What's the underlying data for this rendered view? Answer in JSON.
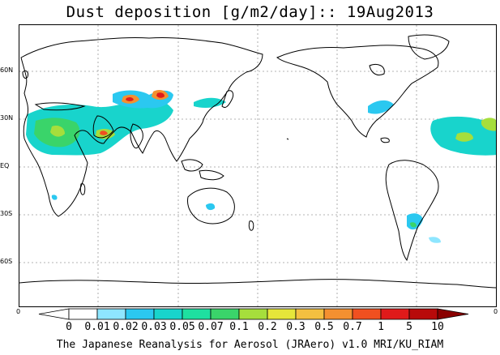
{
  "title": "Dust deposition [g/m2/day]:: 19Aug2013",
  "footer": "The Japanese Reanalysis for Aerosol (JRAero) v1.0 MRI/KU_RIAM",
  "lat_labels": [
    "60N",
    "30N",
    "EQ",
    "30S",
    "60S"
  ],
  "colorbar": {
    "left_edge": "0",
    "right_edge": "0",
    "ticks": [
      "0",
      "0.01",
      "0.02",
      "0.03",
      "0.05",
      "0.07",
      "0.1",
      "0.2",
      "0.3",
      "0.5",
      "0.7",
      "1",
      "5",
      "10"
    ],
    "colors": [
      "#ffffff",
      "#ffffff",
      "#8ee6ff",
      "#2bc8f0",
      "#18d4cc",
      "#1ee0a0",
      "#3ad46a",
      "#a6de3c",
      "#e6e63a",
      "#f4c040",
      "#f49030",
      "#f05020",
      "#e01a1a",
      "#b80a0a",
      "#8a0000"
    ]
  }
}
